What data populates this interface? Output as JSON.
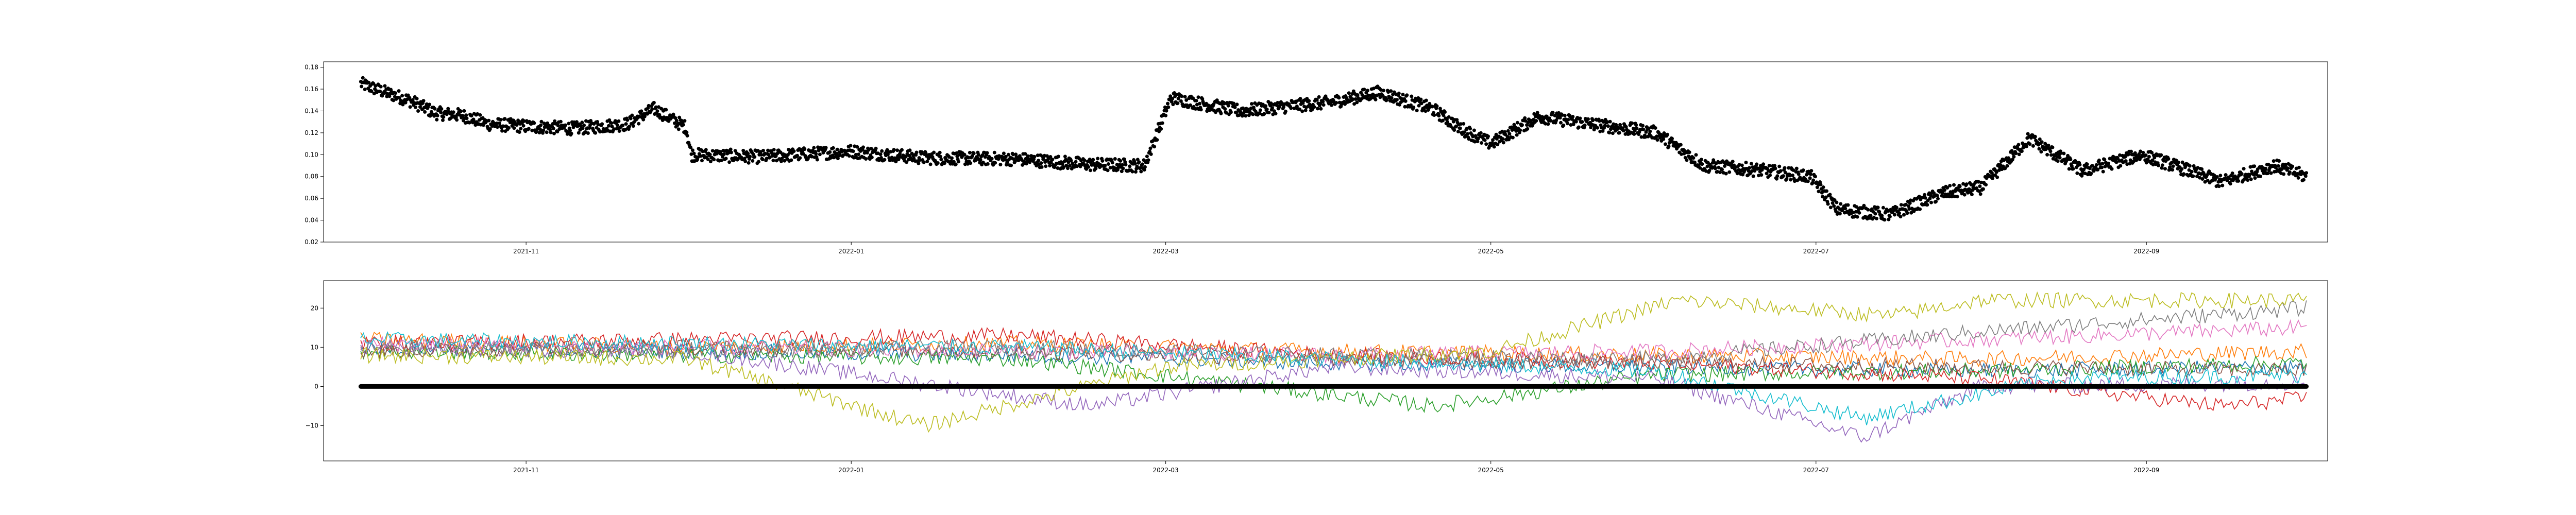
{
  "chart_data": [
    {
      "type": "scatter",
      "title": "",
      "xlabel": "",
      "ylabel": "",
      "x_axis": {
        "type": "date",
        "range": [
          "2021-09-24",
          "2022-10-05"
        ],
        "ticks": [
          {
            "date": "2021-11-01",
            "label": "2021-11"
          },
          {
            "date": "2022-01-01",
            "label": "2022-01"
          },
          {
            "date": "2022-03-01",
            "label": "2022-03"
          },
          {
            "date": "2022-05-01",
            "label": "2022-05"
          },
          {
            "date": "2022-07-01",
            "label": "2022-07"
          },
          {
            "date": "2022-09-01",
            "label": "2022-09"
          }
        ]
      },
      "y_axis": {
        "range": [
          0.02,
          0.185
        ],
        "ticks": [
          0.02,
          0.04,
          0.06,
          0.08,
          0.1,
          0.12,
          0.14,
          0.16,
          0.18
        ],
        "tick_labels": [
          "0.02",
          "0.04",
          "0.06",
          "0.08",
          "0.10",
          "0.12",
          "0.14",
          "0.16",
          "0.18"
        ]
      },
      "grid": false,
      "series": [
        {
          "color": "#000000",
          "marker": "dot",
          "points": [
            [
              "2021-10-01",
              0.165
            ],
            [
              "2021-10-05",
              0.158
            ],
            [
              "2021-10-10",
              0.15
            ],
            [
              "2021-10-15",
              0.138
            ],
            [
              "2021-10-20",
              0.136
            ],
            [
              "2021-10-25",
              0.128
            ],
            [
              "2021-11-01",
              0.126
            ],
            [
              "2021-11-10",
              0.124
            ],
            [
              "2021-11-20",
              0.128
            ],
            [
              "2021-11-25",
              0.142
            ],
            [
              "2021-12-01",
              0.125
            ],
            [
              "2021-12-02",
              0.1
            ],
            [
              "2021-12-15",
              0.098
            ],
            [
              "2022-01-01",
              0.103
            ],
            [
              "2022-01-15",
              0.097
            ],
            [
              "2022-02-01",
              0.096
            ],
            [
              "2022-02-15",
              0.091
            ],
            [
              "2022-02-25",
              0.09
            ],
            [
              "2022-03-02",
              0.152
            ],
            [
              "2022-03-15",
              0.14
            ],
            [
              "2022-04-01",
              0.148
            ],
            [
              "2022-04-10",
              0.157
            ],
            [
              "2022-04-20",
              0.142
            ],
            [
              "2022-04-25",
              0.125
            ],
            [
              "2022-05-01",
              0.11
            ],
            [
              "2022-05-10",
              0.135
            ],
            [
              "2022-05-20",
              0.128
            ],
            [
              "2022-06-01",
              0.12
            ],
            [
              "2022-06-10",
              0.09
            ],
            [
              "2022-06-20",
              0.086
            ],
            [
              "2022-06-30",
              0.08
            ],
            [
              "2022-07-05",
              0.05
            ],
            [
              "2022-07-15",
              0.045
            ],
            [
              "2022-07-25",
              0.065
            ],
            [
              "2022-08-01",
              0.07
            ],
            [
              "2022-08-10",
              0.115
            ],
            [
              "2022-08-20",
              0.085
            ],
            [
              "2022-08-31",
              0.1
            ],
            [
              "2022-09-05",
              0.092
            ],
            [
              "2022-09-15",
              0.075
            ],
            [
              "2022-09-25",
              0.09
            ],
            [
              "2022-10-01",
              0.08
            ]
          ]
        }
      ]
    },
    {
      "type": "line",
      "title": "",
      "xlabel": "",
      "ylabel": "",
      "x_axis": {
        "type": "date",
        "range": [
          "2021-09-24",
          "2022-10-05"
        ],
        "ticks": [
          {
            "date": "2021-11-01",
            "label": "2021-11"
          },
          {
            "date": "2022-01-01",
            "label": "2022-01"
          },
          {
            "date": "2022-03-01",
            "label": "2022-03"
          },
          {
            "date": "2022-05-01",
            "label": "2022-05"
          },
          {
            "date": "2022-07-01",
            "label": "2022-07"
          },
          {
            "date": "2022-09-01",
            "label": "2022-09"
          }
        ]
      },
      "y_axis": {
        "range": [
          -19,
          27
        ],
        "ticks": [
          -10,
          0,
          10,
          20
        ],
        "tick_labels": [
          "−10",
          "0",
          "10",
          "20"
        ]
      },
      "grid": false,
      "series": [
        {
          "color": "#1f77b4",
          "points": [
            [
              "2021-10-01",
              10
            ],
            [
              "2021-12-01",
              9
            ],
            [
              "2022-02-01",
              8
            ],
            [
              "2022-04-01",
              6
            ],
            [
              "2022-06-01",
              5
            ],
            [
              "2022-08-01",
              4
            ],
            [
              "2022-10-01",
              5
            ]
          ]
        },
        {
          "color": "#ff7f0e",
          "points": [
            [
              "2021-10-01",
              12
            ],
            [
              "2021-12-01",
              10
            ],
            [
              "2022-02-01",
              11
            ],
            [
              "2022-04-01",
              9
            ],
            [
              "2022-06-01",
              8
            ],
            [
              "2022-08-01",
              7
            ],
            [
              "2022-10-01",
              9
            ]
          ]
        },
        {
          "color": "#2ca02c",
          "points": [
            [
              "2021-10-01",
              9
            ],
            [
              "2021-12-01",
              8
            ],
            [
              "2022-02-01",
              7
            ],
            [
              "2022-04-20",
              -5
            ],
            [
              "2022-06-01",
              3
            ],
            [
              "2022-08-01",
              4
            ],
            [
              "2022-10-01",
              6
            ]
          ]
        },
        {
          "color": "#d62728",
          "points": [
            [
              "2021-10-01",
              11
            ],
            [
              "2021-12-01",
              12
            ],
            [
              "2022-02-01",
              13
            ],
            [
              "2022-04-01",
              8
            ],
            [
              "2022-06-01",
              6
            ],
            [
              "2022-08-01",
              2
            ],
            [
              "2022-09-15",
              -5
            ],
            [
              "2022-10-01",
              -3
            ]
          ]
        },
        {
          "color": "#9467bd",
          "points": [
            [
              "2021-10-01",
              10
            ],
            [
              "2021-12-01",
              9
            ],
            [
              "2022-02-15",
              -5
            ],
            [
              "2022-04-01",
              5
            ],
            [
              "2022-06-01",
              2
            ],
            [
              "2022-07-10",
              -13
            ],
            [
              "2022-08-01",
              0
            ],
            [
              "2022-10-01",
              1
            ]
          ]
        },
        {
          "color": "#8c564b",
          "points": [
            [
              "2021-10-01",
              9
            ],
            [
              "2021-12-01",
              10
            ],
            [
              "2022-02-01",
              9
            ],
            [
              "2022-04-01",
              7
            ],
            [
              "2022-06-01",
              6
            ],
            [
              "2022-08-01",
              5
            ],
            [
              "2022-10-01",
              4
            ]
          ]
        },
        {
          "color": "#e377c2",
          "points": [
            [
              "2021-10-01",
              11
            ],
            [
              "2021-12-01",
              10
            ],
            [
              "2022-02-01",
              9
            ],
            [
              "2022-04-01",
              8
            ],
            [
              "2022-06-01",
              9
            ],
            [
              "2022-08-01",
              12
            ],
            [
              "2022-10-01",
              15
            ]
          ]
        },
        {
          "color": "#7f7f7f",
          "points": [
            [
              "2021-10-01",
              10
            ],
            [
              "2021-12-01",
              9
            ],
            [
              "2022-02-01",
              10
            ],
            [
              "2022-04-01",
              8
            ],
            [
              "2022-06-01",
              7
            ],
            [
              "2022-08-01",
              14
            ],
            [
              "2022-10-01",
              20
            ]
          ]
        },
        {
          "color": "#bcbd22",
          "points": [
            [
              "2021-10-01",
              8
            ],
            [
              "2021-12-01",
              7
            ],
            [
              "2022-01-15",
              -10
            ],
            [
              "2022-03-01",
              5
            ],
            [
              "2022-05-01",
              9
            ],
            [
              "2022-06-05",
              22
            ],
            [
              "2022-07-15",
              18
            ],
            [
              "2022-08-01",
              22
            ],
            [
              "2022-10-01",
              22
            ]
          ]
        },
        {
          "color": "#17becf",
          "points": [
            [
              "2021-10-01",
              12
            ],
            [
              "2021-12-01",
              11
            ],
            [
              "2022-02-01",
              10
            ],
            [
              "2022-04-01",
              7
            ],
            [
              "2022-06-01",
              4
            ],
            [
              "2022-07-10",
              -8
            ],
            [
              "2022-08-15",
              2
            ],
            [
              "2022-10-01",
              3
            ]
          ]
        },
        {
          "color": "#000000",
          "points": [
            [
              "2021-10-01",
              0
            ],
            [
              "2022-10-01",
              0
            ]
          ]
        }
      ]
    }
  ]
}
